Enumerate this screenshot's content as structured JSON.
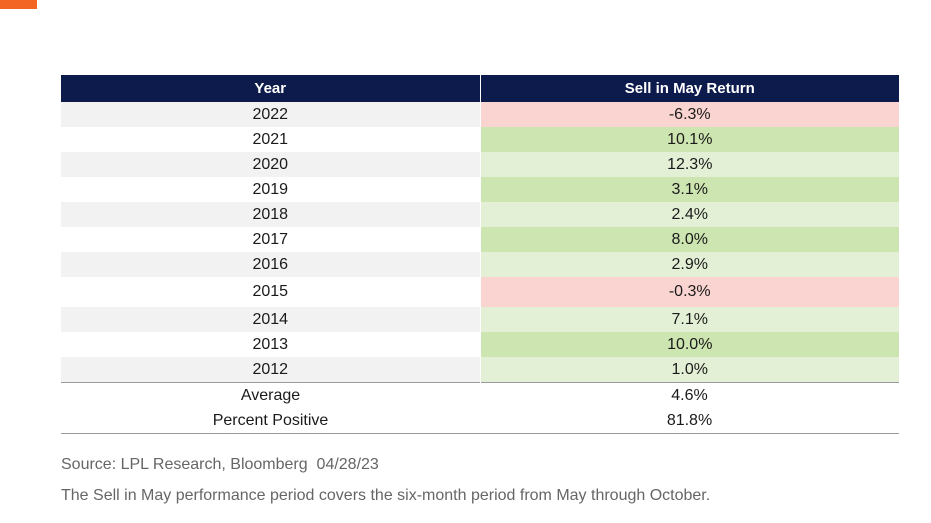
{
  "colors": {
    "accent": "#f26522",
    "header_bg": "#0d1b4c",
    "negative": "#f9d4d0",
    "positive_strong": "#cde5b0",
    "positive_light": "#e4f0d6"
  },
  "chart_data": {
    "type": "table",
    "columns": [
      "Year",
      "Sell in May Return"
    ],
    "rows": [
      {
        "year": "2022",
        "return": "-6.3%",
        "value": -6.3
      },
      {
        "year": "2021",
        "return": "10.1%",
        "value": 10.1
      },
      {
        "year": "2020",
        "return": "12.3%",
        "value": 12.3
      },
      {
        "year": "2019",
        "return": "3.1%",
        "value": 3.1
      },
      {
        "year": "2018",
        "return": "2.4%",
        "value": 2.4
      },
      {
        "year": "2017",
        "return": "8.0%",
        "value": 8.0
      },
      {
        "year": "2016",
        "return": "2.9%",
        "value": 2.9
      },
      {
        "year": "2015",
        "return": "-0.3%",
        "value": -0.3
      },
      {
        "year": "2014",
        "return": "7.1%",
        "value": 7.1
      },
      {
        "year": "2013",
        "return": "10.0%",
        "value": 10.0
      },
      {
        "year": "2012",
        "return": "1.0%",
        "value": 1.0
      }
    ],
    "summary": [
      {
        "label": "Average",
        "value": "4.6%"
      },
      {
        "label": "Percent Positive",
        "value": "81.8%"
      }
    ]
  },
  "footer": {
    "source": "Source: LPL Research, Bloomberg  04/28/23",
    "note": "The Sell in May performance period covers the six-month period from May through October."
  }
}
